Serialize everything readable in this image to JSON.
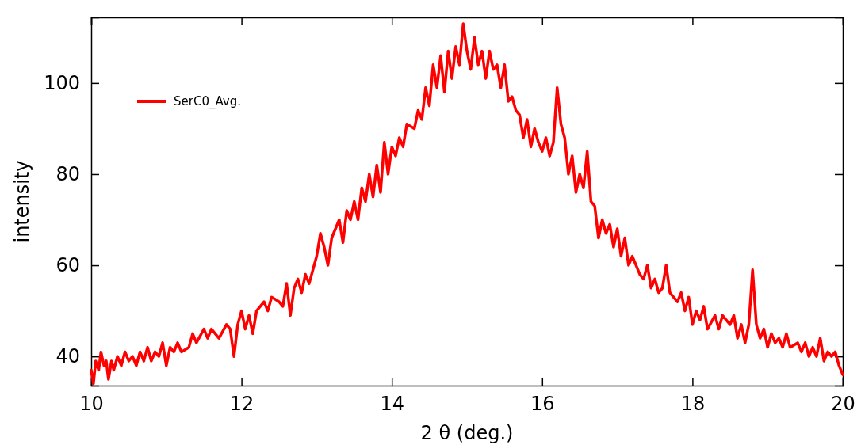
{
  "chart_data": {
    "type": "line",
    "xlabel": "2 θ (deg.)",
    "ylabel": "intensity",
    "xlim": [
      10,
      20
    ],
    "xticks": [
      10,
      12,
      14,
      16,
      18,
      20
    ],
    "ylim": [
      33.6,
      114.4
    ],
    "yticks": [
      40,
      60,
      80,
      100
    ],
    "grid": false,
    "legend": "top left",
    "marker": "none",
    "line_style": "solid",
    "series": [
      {
        "name": "SerC0_Avg.",
        "color": "#ff0000",
        "x": [
          10.0,
          10.03,
          10.06,
          10.1,
          10.13,
          10.17,
          10.2,
          10.23,
          10.27,
          10.3,
          10.35,
          10.4,
          10.45,
          10.5,
          10.55,
          10.6,
          10.65,
          10.7,
          10.75,
          10.8,
          10.85,
          10.9,
          10.95,
          11.0,
          11.05,
          11.1,
          11.15,
          11.2,
          11.3,
          11.35,
          11.4,
          11.5,
          11.55,
          11.6,
          11.7,
          11.8,
          11.85,
          11.9,
          11.95,
          12.0,
          12.05,
          12.1,
          12.15,
          12.2,
          12.3,
          12.35,
          12.4,
          12.5,
          12.55,
          12.6,
          12.65,
          12.7,
          12.75,
          12.8,
          12.85,
          12.9,
          12.95,
          13.0,
          13.05,
          13.1,
          13.15,
          13.2,
          13.3,
          13.35,
          13.4,
          13.45,
          13.5,
          13.55,
          13.6,
          13.65,
          13.7,
          13.75,
          13.8,
          13.85,
          13.9,
          13.95,
          14.0,
          14.05,
          14.1,
          14.15,
          14.2,
          14.3,
          14.35,
          14.4,
          14.45,
          14.5,
          14.55,
          14.6,
          14.65,
          14.7,
          14.75,
          14.8,
          14.85,
          14.9,
          14.95,
          15.0,
          15.05,
          15.1,
          15.15,
          15.2,
          15.25,
          15.3,
          15.35,
          15.4,
          15.45,
          15.5,
          15.55,
          15.6,
          15.65,
          15.7,
          15.75,
          15.8,
          15.85,
          15.9,
          15.95,
          16.0,
          16.05,
          16.1,
          16.15,
          16.2,
          16.25,
          16.3,
          16.35,
          16.4,
          16.45,
          16.5,
          16.55,
          16.6,
          16.65,
          16.7,
          16.75,
          16.8,
          16.85,
          16.9,
          16.95,
          17.0,
          17.05,
          17.1,
          17.15,
          17.2,
          17.3,
          17.35,
          17.4,
          17.45,
          17.5,
          17.55,
          17.6,
          17.65,
          17.7,
          17.8,
          17.85,
          17.9,
          17.95,
          18.0,
          18.05,
          18.1,
          18.15,
          18.2,
          18.3,
          18.35,
          18.4,
          18.5,
          18.55,
          18.6,
          18.65,
          18.7,
          18.75,
          18.8,
          18.85,
          18.9,
          18.95,
          19.0,
          19.05,
          19.1,
          19.15,
          19.2,
          19.25,
          19.3,
          19.4,
          19.45,
          19.5,
          19.55,
          19.6,
          19.65,
          19.7,
          19.75,
          19.8,
          19.85,
          19.9,
          19.95,
          20.0
        ],
        "values": [
          37,
          34,
          39,
          37,
          41,
          38,
          39,
          35,
          39,
          37,
          40,
          38,
          41,
          39,
          40,
          38,
          41,
          39,
          42,
          39,
          41,
          40,
          43,
          38,
          42,
          41,
          43,
          41,
          42,
          45,
          43,
          46,
          44,
          46,
          44,
          47,
          46,
          40,
          47,
          50,
          46,
          49,
          45,
          50,
          52,
          50,
          53,
          52,
          51,
          56,
          49,
          55,
          57,
          54,
          58,
          56,
          59,
          62,
          67,
          64,
          60,
          66,
          70,
          65,
          72,
          70,
          74,
          70,
          77,
          74,
          80,
          75,
          82,
          76,
          87,
          80,
          86,
          84,
          88,
          86,
          91,
          90,
          94,
          92,
          99,
          95,
          104,
          99,
          106,
          98,
          107,
          101,
          108,
          104,
          113,
          107,
          103,
          110,
          104,
          107,
          101,
          107,
          103,
          104,
          99,
          104,
          96,
          97,
          94,
          93,
          88,
          92,
          86,
          90,
          87,
          85,
          88,
          84,
          87,
          99,
          91,
          88,
          80,
          84,
          76,
          80,
          77,
          85,
          74,
          73,
          66,
          70,
          67,
          69,
          64,
          68,
          62,
          66,
          60,
          62,
          58,
          57,
          60,
          55,
          57,
          54,
          55,
          60,
          54,
          52,
          54,
          50,
          53,
          47,
          50,
          48,
          51,
          46,
          49,
          46,
          49,
          47,
          49,
          44,
          47,
          43,
          47,
          59,
          47,
          44,
          46,
          42,
          45,
          43,
          44,
          42,
          45,
          42,
          43,
          41,
          43,
          40,
          42,
          40,
          44,
          39,
          41,
          40,
          41,
          38,
          36
        ]
      }
    ]
  }
}
